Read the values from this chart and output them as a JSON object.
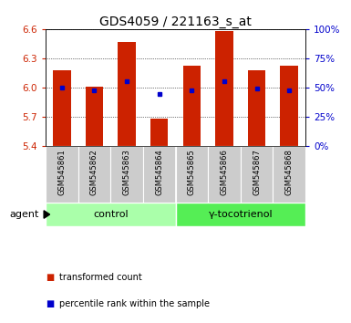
{
  "title": "GDS4059 / 221163_s_at",
  "samples": [
    "GSM545861",
    "GSM545862",
    "GSM545863",
    "GSM545864",
    "GSM545865",
    "GSM545866",
    "GSM545867",
    "GSM545868"
  ],
  "bar_tops": [
    6.18,
    6.01,
    6.47,
    5.68,
    6.22,
    6.58,
    6.18,
    6.22
  ],
  "bar_bottom": 5.4,
  "percentile_values": [
    6.0,
    5.97,
    6.06,
    5.93,
    5.97,
    6.06,
    5.99,
    5.97
  ],
  "ylim": [
    5.4,
    6.6
  ],
  "yticks_left": [
    5.4,
    5.7,
    6.0,
    6.3,
    6.6
  ],
  "yticks_right": [
    0,
    25,
    50,
    75,
    100
  ],
  "bar_color": "#cc2200",
  "percentile_color": "#0000cc",
  "group_labels": [
    "control",
    "γ-tocotrienol"
  ],
  "group_colors_control": "#aaffaa",
  "group_colors_treatment": "#55ee55",
  "agent_label": "agent",
  "legend_items": [
    "transformed count",
    "percentile rank within the sample"
  ],
  "background_color": "#ffffff",
  "bar_width": 0.55,
  "title_fontsize": 10,
  "tick_fontsize": 7.5,
  "sample_fontsize": 6,
  "group_fontsize": 8,
  "legend_fontsize": 7
}
